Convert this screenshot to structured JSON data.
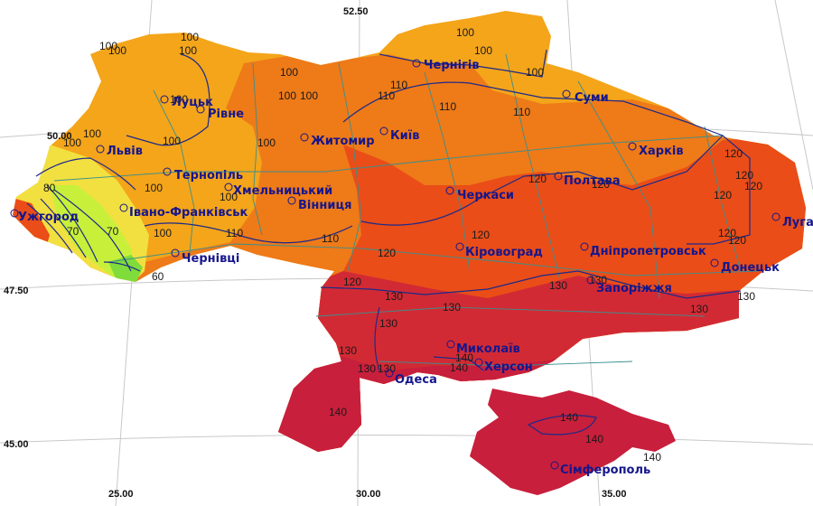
{
  "map": {
    "colors": {
      "band_60": "#7fdc3a",
      "band_70": "#c8f03a",
      "band_80": "#f1e040",
      "band_100": "#f4a51a",
      "band_110": "#ee7a18",
      "band_120": "#ea4d18",
      "band_130": "#d22a34",
      "band_140": "#c81f3c",
      "isoline": "#1d2a8a",
      "region_border": "#3a8f8f",
      "city_text": "#16168c"
    },
    "axes": {
      "lat_top": "52.50",
      "lat_50": "50.00",
      "lat_47": "47.50",
      "lat_45": "45.00",
      "lon_25": "25.00",
      "lon_30": "30.00",
      "lon_35": "35.00"
    },
    "cities": {
      "chernihiv": "Чернігів",
      "sumy": "Суми",
      "lutsk": "Луцьк",
      "rivne": "Рівне",
      "zhytomyr": "Житомир",
      "kyiv": "Київ",
      "lviv": "Львів",
      "kharkiv": "Харків",
      "ternopil": "Тернопіль",
      "khmelnytskyi": "Хмельницький",
      "poltava": "Полтава",
      "cherkasy": "Черкаси",
      "uzhhorod": "Ужгород",
      "ivano_frankivsk": "Івано-Франківськ",
      "vinnytsia": "Вінниця",
      "luhansk": "Луга",
      "chernivtsi": "Чернівці",
      "kirovohrad": "Кіровоград",
      "dnipropetrovsk": "Дніпропетровськ",
      "donetsk": "Донецьк",
      "zaporizhzhia": "Запоріжжя",
      "mykolaiv": "Миколаїв",
      "kherson": "Херсон",
      "odesa": "Одеса",
      "simferopol": "Сімферополь"
    },
    "iso_values": {
      "v60": "60",
      "v70": "70",
      "v80": "80",
      "v100": "100",
      "v110": "110",
      "v120": "120",
      "v130": "130",
      "v140": "140"
    }
  }
}
